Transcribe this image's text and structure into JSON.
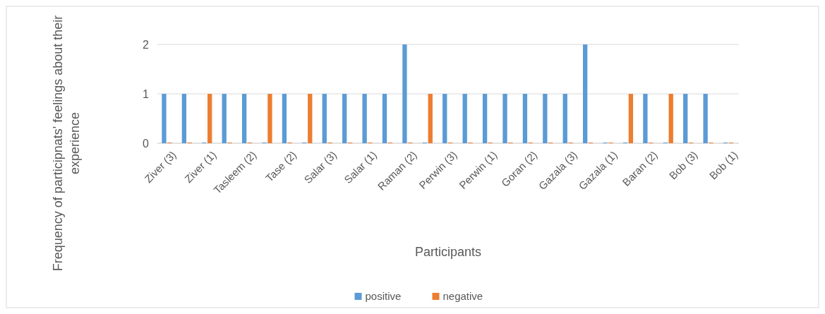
{
  "chart_data": {
    "type": "bar",
    "xlabel": "Participants",
    "ylabel": "Frequency of participnats' feelings about their experience",
    "categories": [
      "Ziver (3)",
      null,
      "Ziver (1)",
      null,
      "Tasleem (2)",
      null,
      "Tase (2)",
      null,
      "Salar (3)",
      null,
      "Salar (1)",
      null,
      "Raman (2)",
      null,
      "Perwin (3)",
      null,
      "Perwin (1)",
      null,
      "Goran (2)",
      null,
      "Gazala (3)",
      null,
      "Gazala (1)",
      null,
      "Baran (2)",
      null,
      "Bob (3)",
      null,
      "Bob (1)"
    ],
    "series": [
      {
        "name": "positive",
        "color": "#5b9bd5",
        "values": [
          1,
          1,
          0,
          1,
          1,
          0,
          1,
          0,
          1,
          1,
          1,
          1,
          2,
          0,
          1,
          1,
          1,
          1,
          1,
          1,
          1,
          2,
          0,
          0,
          1,
          0,
          1,
          1,
          0
        ]
      },
      {
        "name": "negative",
        "color": "#ed7d31",
        "values": [
          0,
          0,
          1,
          0,
          0,
          1,
          0,
          1,
          0,
          0,
          0,
          0,
          0,
          1,
          0,
          0,
          0,
          0,
          0,
          0,
          0,
          0,
          0,
          1,
          0,
          1,
          0,
          0,
          0
        ]
      }
    ],
    "ylim": [
      0,
      2
    ],
    "yticks": [
      0,
      1,
      2
    ],
    "grid": "y",
    "legend": "bottom"
  }
}
